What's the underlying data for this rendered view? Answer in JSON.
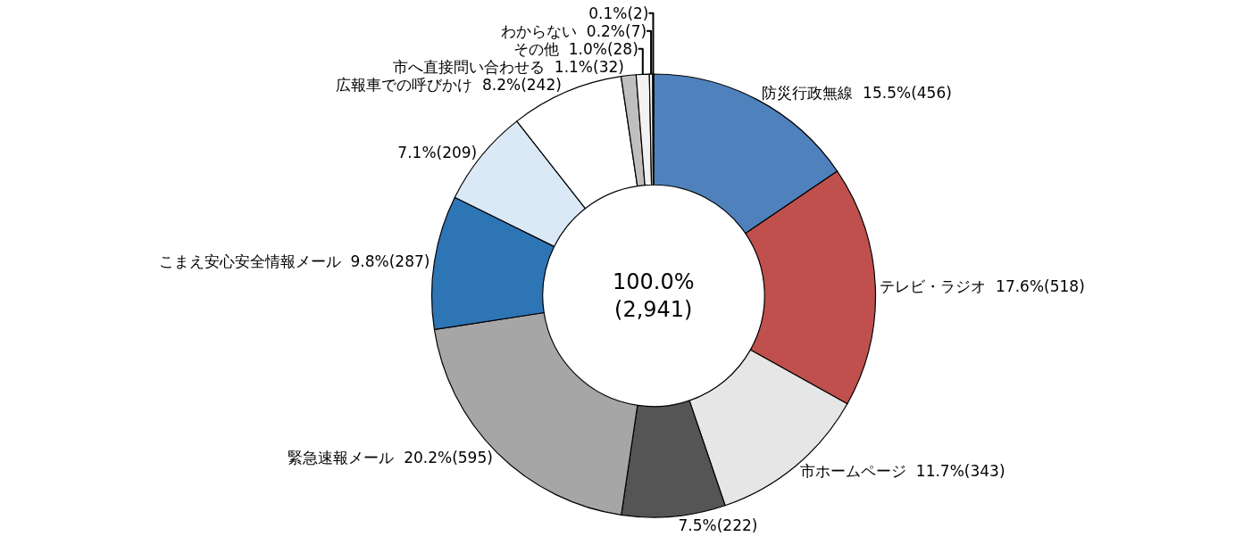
{
  "chart_data": {
    "type": "donut",
    "categories": [
      "防災行政無線",
      "テレビ・ラジオ",
      "市ホームページ",
      null,
      "緊急速報メール",
      "こまえ安心安全情報メール",
      null,
      "広報車での呼びかけ",
      "市へ直接問い合わせる",
      "その他",
      "わからない",
      null
    ],
    "values": [
      456,
      518,
      343,
      222,
      595,
      287,
      209,
      242,
      32,
      28,
      7,
      2
    ],
    "value_labels": [
      "15.5%(456)",
      "17.6%(518)",
      "11.7%(343)",
      "7.5%(222)",
      "20.2%(595)",
      "9.8%(287)",
      "7.1%(209)",
      "8.2%(242)",
      "1.1%(32)",
      "1.0%(28)",
      "0.2%(7)",
      "0.1%(2)"
    ],
    "colors": [
      "#4f81bd",
      "#c0504d",
      "#e6e6e6",
      "#555555",
      "#a6a6a6",
      "#2e75b6",
      "#dbe9f7",
      "#ffffff",
      "#bfbfbf",
      "#f2f2f2",
      "#ffffff",
      "#000000"
    ],
    "annotations": [
      "100.0%\n(2,941)"
    ]
  }
}
